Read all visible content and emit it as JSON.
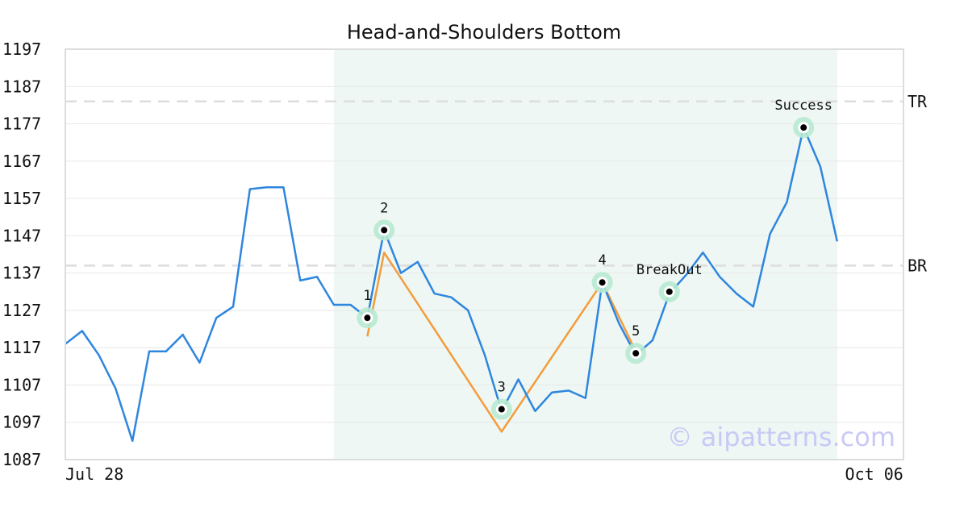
{
  "chart_data": {
    "type": "line",
    "title": "Head-and-Shoulders Bottom",
    "xlabel": "",
    "ylabel": "",
    "ylim": [
      1087,
      1197
    ],
    "yticks": [
      1087,
      1097,
      1107,
      1117,
      1127,
      1137,
      1147,
      1157,
      1167,
      1177,
      1187,
      1197
    ],
    "x_tick_labels": [
      {
        "index": 0,
        "label": "Jul 28"
      },
      {
        "index": 46,
        "label": "Oct 06"
      }
    ],
    "grid": true,
    "series": [
      {
        "color": "#2e86de",
        "values": [
          1118,
          1121.5,
          1115,
          1106,
          1092,
          1116,
          1116,
          1120.5,
          1113,
          1125,
          1128,
          1159.5,
          1160,
          1160,
          1135,
          1136,
          1128.5,
          1128.5,
          1125,
          1148.5,
          1137,
          1140,
          1131.5,
          1130.5,
          1127,
          1115,
          1100,
          1108.5,
          1100,
          1105,
          1105.5,
          1103.5,
          1134.5,
          1123.5,
          1115,
          1119,
          1131.5,
          1136.5,
          1142.5,
          1136,
          1131.5,
          1128,
          1147.5,
          1156,
          1176,
          1165.5,
          1145.5
        ]
      },
      {
        "color": "#f39c3c",
        "points": [
          [
            18,
            1120
          ],
          [
            19,
            1142.5
          ],
          [
            26,
            1094.5
          ],
          [
            32,
            1134.5
          ],
          [
            34,
            1116
          ]
        ]
      }
    ],
    "pattern_region": {
      "start_index": 16,
      "end_index": 46,
      "color": "#eef7f3"
    },
    "levels": [
      {
        "label": "TR",
        "value": 1183
      },
      {
        "label": "BR",
        "value": 1139
      }
    ],
    "annotations": [
      {
        "label": "1",
        "index": 18,
        "value": 1125
      },
      {
        "label": "2",
        "index": 19,
        "value": 1148.5
      },
      {
        "label": "3",
        "index": 26,
        "value": 1100.5
      },
      {
        "label": "4",
        "index": 32,
        "value": 1134.5
      },
      {
        "label": "5",
        "index": 34,
        "value": 1115.5
      },
      {
        "label": "BreakOut",
        "index": 36,
        "value": 1132
      },
      {
        "label": "Success",
        "index": 44,
        "value": 1176
      }
    ],
    "watermark": "© aipatterns.com"
  }
}
